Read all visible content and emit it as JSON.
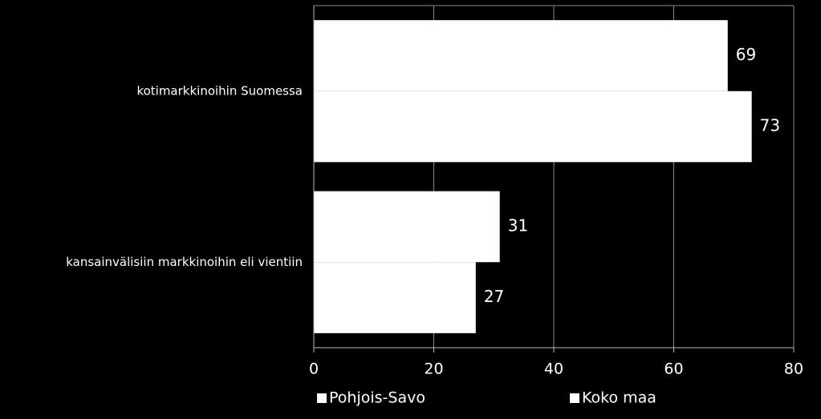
{
  "chart_data": {
    "type": "hbar",
    "categories": [
      "kotimarkkinoihin Suomessa",
      "kansainvälisiin markkinoihin eli vientiin"
    ],
    "series": [
      {
        "name": "Pohjois-Savo",
        "color": "#ffffff",
        "values": [
          69,
          31
        ]
      },
      {
        "name": "Koko maa",
        "color": "#ffffff",
        "values": [
          73,
          27
        ]
      }
    ],
    "xlim": [
      0,
      80
    ],
    "xticks": [
      0,
      20,
      40,
      60,
      80
    ],
    "grid": true,
    "legend": "bottom"
  }
}
